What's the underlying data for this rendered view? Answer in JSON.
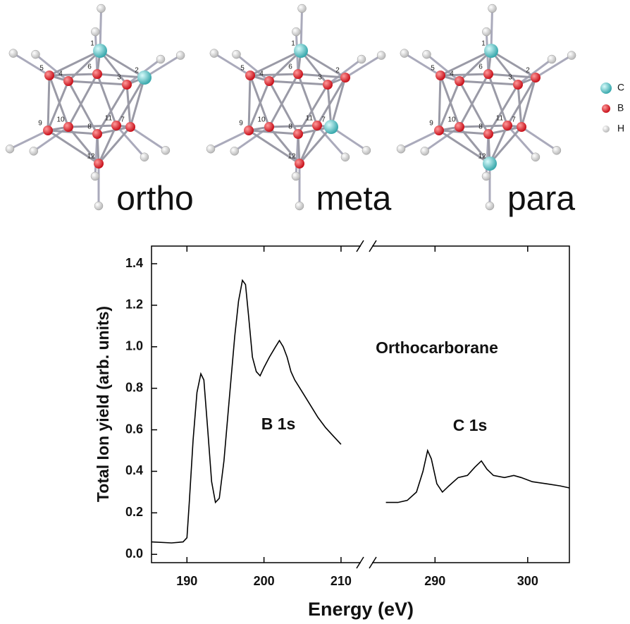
{
  "molecules": [
    {
      "name": "ortho",
      "atom_labels": [
        "1",
        "2",
        "3",
        "4",
        "5",
        "6",
        "7",
        "8",
        "9",
        "10",
        "11",
        "12"
      ]
    },
    {
      "name": "meta",
      "atom_labels": [
        "1",
        "2",
        "3",
        "4",
        "5",
        "6",
        "7",
        "8",
        "9",
        "10",
        "11",
        "12"
      ]
    },
    {
      "name": "para",
      "atom_labels": [
        "1",
        "2",
        "3",
        "4",
        "5",
        "6",
        "7",
        "8",
        "9",
        "10",
        "11",
        "12"
      ]
    }
  ],
  "atom_legend": [
    "C",
    "B",
    "H"
  ],
  "chart_data": {
    "type": "line",
    "xlabel": "Energy (eV)",
    "ylabel": "Total Ion yield (arb. units)",
    "annotations": [
      "Orthocarborane",
      "B 1s",
      "C 1s"
    ],
    "color": "#000000",
    "ylim": [
      -0.04,
      1.485
    ],
    "yticks": [
      {
        "value": 0,
        "label": "0.0"
      },
      0.2,
      0.4,
      0.6,
      0.8,
      {
        "value": 1,
        "label": "1.0"
      },
      1.2,
      1.4
    ],
    "panels": [
      {
        "xlim": [
          185.4,
          213.3
        ],
        "xticks": [
          190,
          200,
          210
        ],
        "x": [
          185.4,
          188,
          189.5,
          190,
          190.3,
          190.8,
          191.3,
          191.8,
          192.2,
          192.7,
          193.2,
          193.7,
          194.2,
          194.8,
          195.5,
          196.2,
          196.7,
          197.2,
          197.6,
          198,
          198.5,
          199,
          199.5,
          200,
          200.7,
          201.5,
          202,
          202.5,
          203,
          203.5,
          204,
          205,
          206,
          207,
          208,
          209,
          210
        ],
        "values": [
          0.06,
          0.055,
          0.06,
          0.08,
          0.25,
          0.55,
          0.78,
          0.87,
          0.84,
          0.6,
          0.35,
          0.25,
          0.27,
          0.45,
          0.75,
          1.05,
          1.22,
          1.32,
          1.3,
          1.15,
          0.95,
          0.88,
          0.86,
          0.9,
          0.95,
          1.0,
          1.03,
          1.0,
          0.95,
          0.88,
          0.84,
          0.78,
          0.72,
          0.66,
          0.61,
          0.57,
          0.53
        ]
      },
      {
        "xlim": [
          282.6,
          304.5
        ],
        "xticks": [
          290,
          300
        ],
        "x": [
          284.7,
          286,
          287,
          288,
          288.7,
          289.2,
          289.6,
          290.2,
          290.8,
          291.5,
          292.5,
          293.5,
          294.3,
          295,
          295.6,
          296.3,
          297.5,
          298.5,
          299.3,
          300.5,
          302,
          303.5,
          304.5
        ],
        "values": [
          0.25,
          0.25,
          0.26,
          0.3,
          0.4,
          0.5,
          0.46,
          0.34,
          0.3,
          0.33,
          0.37,
          0.38,
          0.42,
          0.45,
          0.41,
          0.38,
          0.37,
          0.38,
          0.37,
          0.35,
          0.34,
          0.33,
          0.32
        ]
      }
    ]
  }
}
